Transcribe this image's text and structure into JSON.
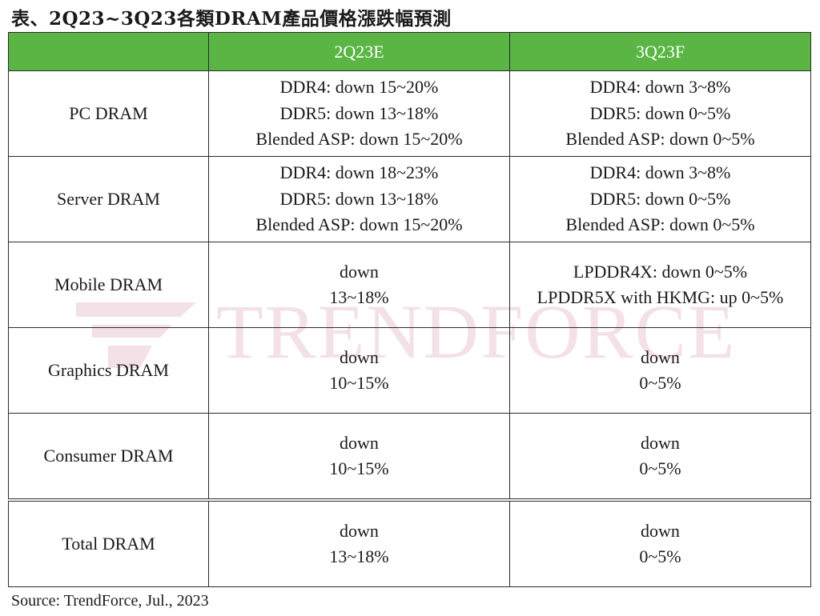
{
  "title": "表、2Q23~3Q23各類DRAM產品價格漲跌幅預測",
  "watermark": "TRENDFORCE",
  "colors": {
    "header_bg": "#5ab544",
    "header_text": "#ffffff",
    "border": "#2b2b2b",
    "watermark": "#ebc9d4"
  },
  "table": {
    "columns": [
      "",
      "2Q23E",
      "3Q23F"
    ],
    "rows": [
      {
        "label": "PC DRAM",
        "q2": [
          "DDR4: down 15~20%",
          "DDR5: down 13~18%",
          "Blended ASP: down 15~20%"
        ],
        "q3": [
          "DDR4: down 3~8%",
          "DDR5: down 0~5%",
          "Blended ASP: down 0~5%"
        ]
      },
      {
        "label": "Server DRAM",
        "q2": [
          "DDR4: down 18~23%",
          "DDR5: down 13~18%",
          "Blended ASP: down 15~20%"
        ],
        "q3": [
          "DDR4: down 3~8%",
          "DDR5: down 0~5%",
          "Blended ASP: down 0~5%"
        ]
      },
      {
        "label": "Mobile DRAM",
        "q2": [
          "down",
          "13~18%"
        ],
        "q3": [
          "LPDDR4X: down 0~5%",
          "LPDDR5X with HKMG: up 0~5%"
        ]
      },
      {
        "label": "Graphics DRAM",
        "q2": [
          "down",
          "10~15%"
        ],
        "q3": [
          "down",
          "0~5%"
        ]
      },
      {
        "label": "Consumer DRAM",
        "q2": [
          "down",
          "10~15%"
        ],
        "q3": [
          "down",
          "0~5%"
        ]
      },
      {
        "label": "Total DRAM",
        "q2": [
          "down",
          "13~18%"
        ],
        "q3": [
          "down",
          "0~5%"
        ]
      }
    ]
  },
  "source": "Source: TrendForce, Jul., 2023"
}
